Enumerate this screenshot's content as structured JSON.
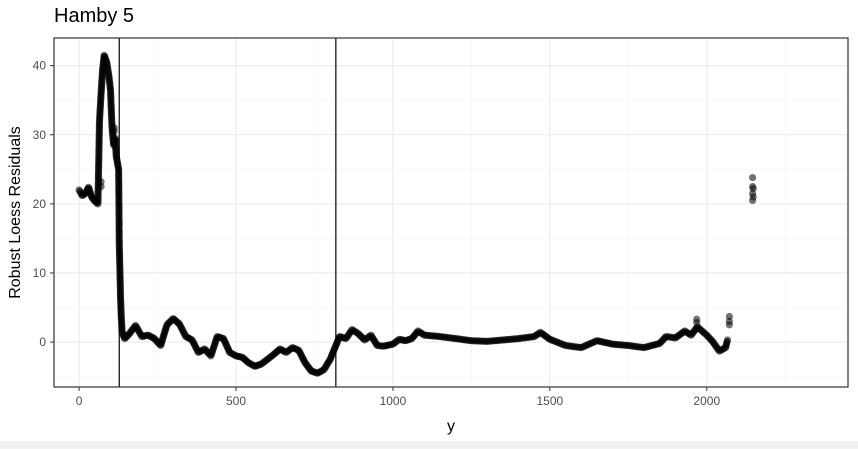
{
  "chart_data": {
    "type": "scatter",
    "title": "Hamby 5",
    "xlabel": "y",
    "ylabel": "Robust Loess Residuals",
    "xlim": [
      -80,
      2450
    ],
    "ylim": [
      -6.5,
      44
    ],
    "xticks": [
      0,
      500,
      1000,
      1500,
      2000
    ],
    "yticks": [
      0,
      10,
      20,
      30,
      40
    ],
    "xtick_labels": [
      "0",
      "500",
      "1000",
      "1500",
      "2000"
    ],
    "ytick_labels": [
      "0",
      "10",
      "20",
      "30",
      "40"
    ],
    "vlines": [
      128,
      818
    ],
    "grid": true,
    "legend": "none",
    "point_color": "#000000",
    "curve": [
      [
        0,
        22.0
      ],
      [
        10,
        21.2
      ],
      [
        20,
        21.5
      ],
      [
        30,
        22.4
      ],
      [
        40,
        21.0
      ],
      [
        50,
        20.4
      ],
      [
        60,
        20.0
      ],
      [
        65,
        32.0
      ],
      [
        70,
        36.0
      ],
      [
        75,
        39.5
      ],
      [
        80,
        41.5
      ],
      [
        88,
        40.5
      ],
      [
        95,
        38.5
      ],
      [
        100,
        36.5
      ],
      [
        105,
        31.0
      ],
      [
        110,
        28.5
      ],
      [
        115,
        29.5
      ],
      [
        118,
        27.0
      ],
      [
        122,
        26.0
      ],
      [
        126,
        25.0
      ],
      [
        128,
        14.0
      ],
      [
        130,
        10.5
      ],
      [
        132,
        6.5
      ],
      [
        134,
        4.0
      ],
      [
        137,
        1.5
      ],
      [
        145,
        0.5
      ],
      [
        160,
        1.2
      ],
      [
        180,
        2.4
      ],
      [
        200,
        0.8
      ],
      [
        220,
        1.0
      ],
      [
        240,
        0.5
      ],
      [
        260,
        -0.5
      ],
      [
        280,
        2.5
      ],
      [
        300,
        3.4
      ],
      [
        320,
        2.6
      ],
      [
        340,
        0.8
      ],
      [
        360,
        0.3
      ],
      [
        380,
        -1.5
      ],
      [
        400,
        -1.0
      ],
      [
        420,
        -2.0
      ],
      [
        440,
        0.8
      ],
      [
        460,
        0.5
      ],
      [
        480,
        -1.5
      ],
      [
        500,
        -2.0
      ],
      [
        520,
        -2.2
      ],
      [
        540,
        -3.0
      ],
      [
        560,
        -3.5
      ],
      [
        580,
        -3.2
      ],
      [
        600,
        -2.5
      ],
      [
        620,
        -1.8
      ],
      [
        640,
        -1.0
      ],
      [
        660,
        -1.5
      ],
      [
        680,
        -0.8
      ],
      [
        700,
        -1.2
      ],
      [
        720,
        -3.0
      ],
      [
        740,
        -4.2
      ],
      [
        760,
        -4.5
      ],
      [
        780,
        -4.0
      ],
      [
        800,
        -2.5
      ],
      [
        818,
        -0.5
      ],
      [
        830,
        0.8
      ],
      [
        850,
        0.5
      ],
      [
        870,
        1.8
      ],
      [
        890,
        1.2
      ],
      [
        910,
        0.3
      ],
      [
        930,
        1.0
      ],
      [
        950,
        -0.5
      ],
      [
        970,
        -0.6
      ],
      [
        1000,
        -0.3
      ],
      [
        1020,
        0.4
      ],
      [
        1040,
        0.2
      ],
      [
        1060,
        0.5
      ],
      [
        1080,
        1.6
      ],
      [
        1100,
        1.0
      ],
      [
        1150,
        0.8
      ],
      [
        1200,
        0.5
      ],
      [
        1250,
        0.2
      ],
      [
        1300,
        0.1
      ],
      [
        1350,
        0.3
      ],
      [
        1400,
        0.5
      ],
      [
        1450,
        0.8
      ],
      [
        1470,
        1.4
      ],
      [
        1500,
        0.4
      ],
      [
        1550,
        -0.5
      ],
      [
        1600,
        -0.8
      ],
      [
        1650,
        0.2
      ],
      [
        1700,
        -0.3
      ],
      [
        1750,
        -0.5
      ],
      [
        1800,
        -0.8
      ],
      [
        1850,
        -0.2
      ],
      [
        1870,
        0.8
      ],
      [
        1900,
        0.6
      ],
      [
        1930,
        1.6
      ],
      [
        1950,
        1.0
      ],
      [
        1970,
        2.2
      ],
      [
        2000,
        1.0
      ],
      [
        2020,
        0.0
      ],
      [
        2040,
        -1.3
      ],
      [
        2060,
        -0.8
      ],
      [
        2066,
        0.3
      ]
    ],
    "clusters": [
      {
        "x": 2072,
        "values": [
          2.5,
          3.0,
          3.7
        ]
      },
      {
        "x": 2146,
        "values": [
          20.5,
          21.5,
          22.5,
          23.8
        ]
      },
      {
        "x": 2148,
        "values": [
          21.0,
          22.2
        ]
      },
      {
        "x": 1968,
        "values": [
          2.8,
          3.3
        ]
      },
      {
        "x": 70,
        "values": [
          22.5,
          23.2
        ]
      },
      {
        "x": 112,
        "values": [
          30.5,
          31.0
        ]
      }
    ]
  }
}
